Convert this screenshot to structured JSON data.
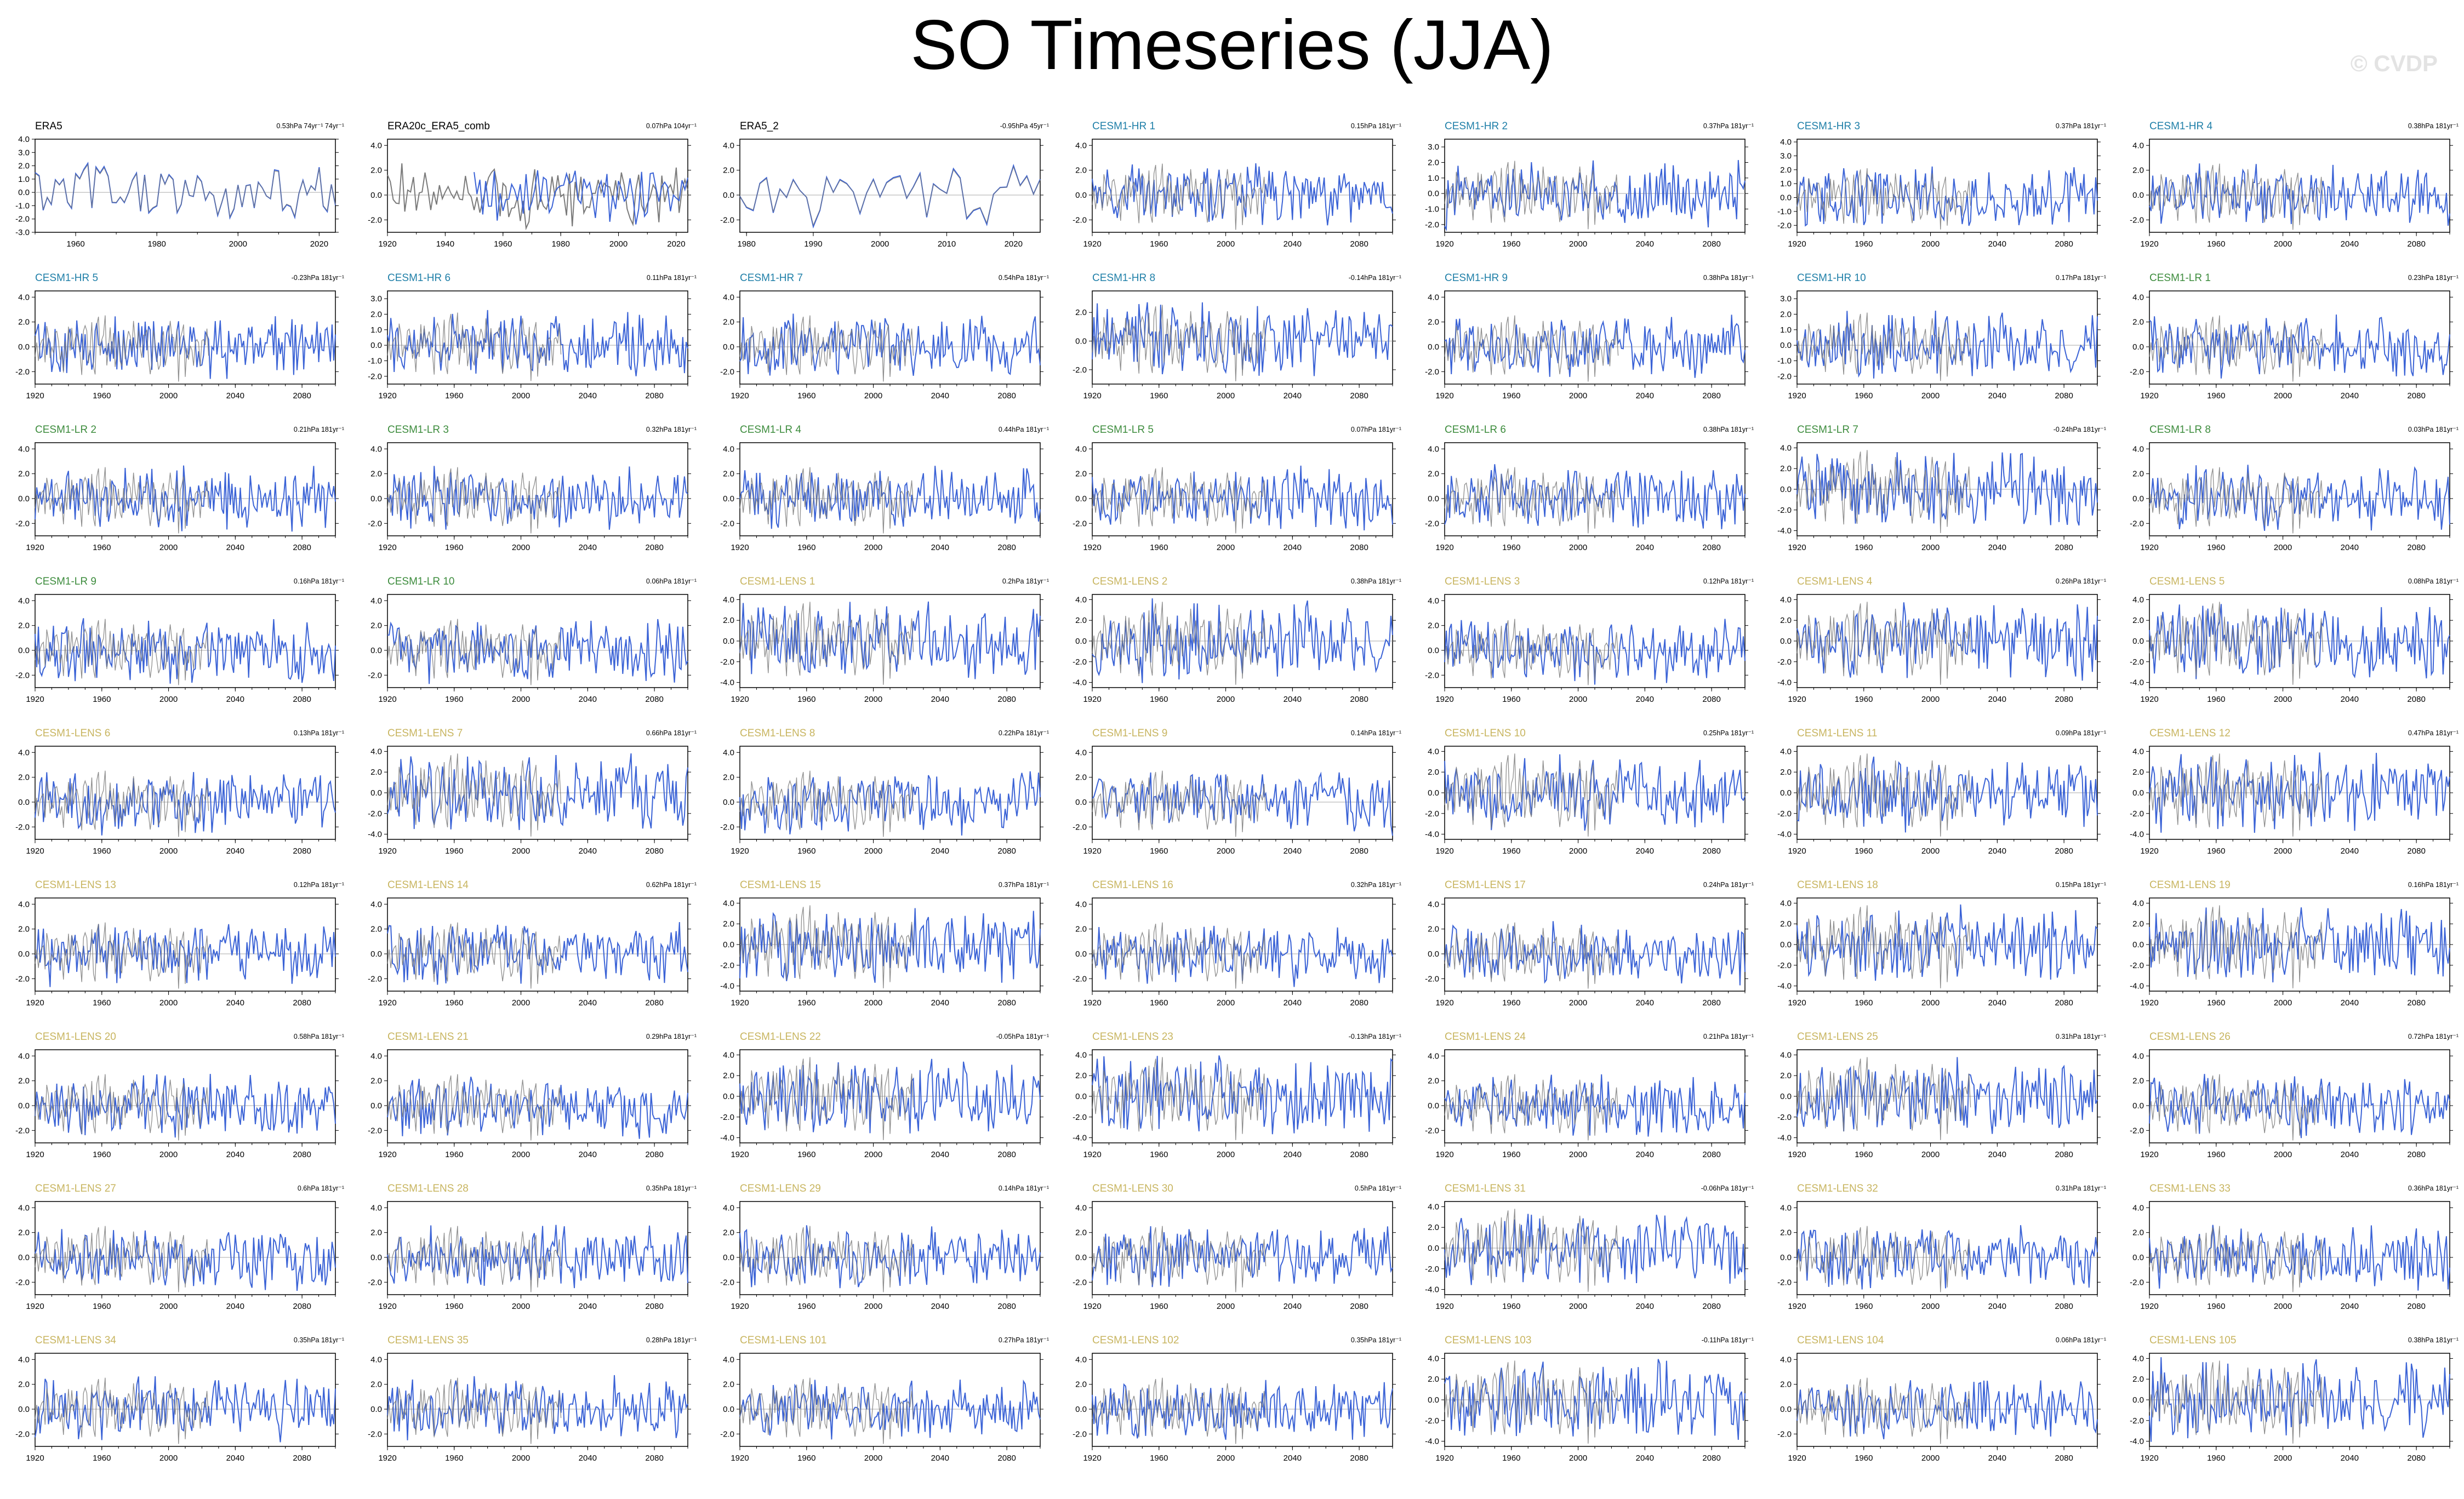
{
  "title": "SO Timeseries (JJA)",
  "watermark": "© CVDP",
  "colors": {
    "obs_black": "#000000",
    "hr_blue": "#1f7fa8",
    "lr_green": "#3d8c3d",
    "lens_gold": "#c8b560",
    "model_line": "#3b63d6",
    "obs_overlay": "#7a7a7a",
    "zero_line": "#aaaaaa"
  },
  "chart_data": [
    {
      "type": "line",
      "title": "ERA5",
      "trend": "0.53hPa 74yr⁻¹ 74yr⁻¹",
      "group": "obs",
      "xlim": [
        1950,
        2024
      ],
      "xticks": [
        "1960",
        "1980",
        "2000",
        "2020"
      ],
      "yticks": [
        "4.0",
        "3.0",
        "2.0",
        "1.0",
        "0.0",
        "-1.0",
        "-2.0",
        "-3.0"
      ],
      "ylim": [
        -3,
        4
      ]
    },
    {
      "type": "line",
      "title": "ERA20c_ERA5_comb",
      "trend": "0.07hPa 104yr⁻¹",
      "group": "obs",
      "xlim": [
        1920,
        2024
      ],
      "xticks": [
        "1920",
        "1940",
        "1960",
        "1980",
        "2000",
        "2020"
      ],
      "yticks": [
        "4.0",
        "2.0",
        "0.0",
        "-2.0"
      ],
      "ylim": [
        -3,
        4.5
      ]
    },
    {
      "type": "line",
      "title": "ERA5_2",
      "trend": "-0.95hPa 45yr⁻¹",
      "group": "obs",
      "xlim": [
        1979,
        2024
      ],
      "xticks": [
        "1980",
        "1990",
        "2000",
        "2010",
        "2020"
      ],
      "yticks": [
        "4.0",
        "2.0",
        "0.0",
        "-2.0"
      ],
      "ylim": [
        -3,
        4.5
      ]
    },
    {
      "type": "line",
      "title": "CESM1-HR 1",
      "trend": "0.15hPa 181yr⁻¹",
      "group": "hr",
      "yticks": [
        "4.0",
        "2.0",
        "0.0",
        "-2.0"
      ],
      "ylim": [
        -3,
        4.5
      ]
    },
    {
      "type": "line",
      "title": "CESM1-HR 2",
      "trend": "0.37hPa 181yr⁻¹",
      "group": "hr",
      "yticks": [
        "3.0",
        "2.0",
        "1.0",
        "0.0",
        "-1.0",
        "-2.0"
      ],
      "ylim": [
        -2.5,
        3.5
      ]
    },
    {
      "type": "line",
      "title": "CESM1-HR 3",
      "trend": "0.37hPa 181yr⁻¹",
      "group": "hr",
      "yticks": [
        "4.0",
        "3.0",
        "2.0",
        "1.0",
        "0.0",
        "-1.0",
        "-2.0"
      ],
      "ylim": [
        -2.5,
        4.2
      ]
    },
    {
      "type": "line",
      "title": "CESM1-HR 4",
      "trend": "0.38hPa 181yr⁻¹",
      "group": "hr",
      "yticks": [
        "4.0",
        "2.0",
        "0.0",
        "-2.0"
      ],
      "ylim": [
        -3,
        4.5
      ]
    },
    {
      "type": "line",
      "title": "CESM1-HR 5",
      "trend": "-0.23hPa 181yr⁻¹",
      "group": "hr",
      "yticks": [
        "4.0",
        "2.0",
        "0.0",
        "-2.0"
      ],
      "ylim": [
        -3,
        4.5
      ]
    },
    {
      "type": "line",
      "title": "CESM1-HR 6",
      "trend": "0.11hPa 181yr⁻¹",
      "group": "hr",
      "yticks": [
        "3.0",
        "2.0",
        "1.0",
        "0.0",
        "-1.0",
        "-2.0"
      ],
      "ylim": [
        -2.5,
        3.5
      ]
    },
    {
      "type": "line",
      "title": "CESM1-HR 7",
      "trend": "0.54hPa 181yr⁻¹",
      "group": "hr",
      "yticks": [
        "4.0",
        "2.0",
        "0.0",
        "-2.0"
      ],
      "ylim": [
        -3,
        4.5
      ]
    },
    {
      "type": "line",
      "title": "CESM1-HR 8",
      "trend": "-0.14hPa 181yr⁻¹",
      "group": "hr",
      "yticks": [
        "2.0",
        "0.0",
        "-2.0"
      ],
      "ylim": [
        -3,
        3.5
      ]
    },
    {
      "type": "line",
      "title": "CESM1-HR 9",
      "trend": "0.38hPa 181yr⁻¹",
      "group": "hr",
      "yticks": [
        "4.0",
        "2.0",
        "0.0",
        "-2.0"
      ],
      "ylim": [
        -3,
        4.5
      ]
    },
    {
      "type": "line",
      "title": "CESM1-HR 10",
      "trend": "0.17hPa 181yr⁻¹",
      "group": "hr",
      "yticks": [
        "3.0",
        "2.0",
        "1.0",
        "0.0",
        "-1.0",
        "-2.0"
      ],
      "ylim": [
        -2.5,
        3.5
      ]
    },
    {
      "type": "line",
      "title": "CESM1-LR 1",
      "trend": "0.23hPa 181yr⁻¹",
      "group": "lr",
      "yticks": [
        "4.0",
        "2.0",
        "0.0",
        "-2.0"
      ],
      "ylim": [
        -3,
        4.5
      ]
    },
    {
      "type": "line",
      "title": "CESM1-LR 2",
      "trend": "0.21hPa 181yr⁻¹",
      "group": "lr",
      "yticks": [
        "4.0",
        "2.0",
        "0.0",
        "-2.0"
      ],
      "ylim": [
        -3,
        4.5
      ]
    },
    {
      "type": "line",
      "title": "CESM1-LR 3",
      "trend": "0.32hPa 181yr⁻¹",
      "group": "lr",
      "yticks": [
        "4.0",
        "2.0",
        "0.0",
        "-2.0"
      ],
      "ylim": [
        -3,
        4.5
      ]
    },
    {
      "type": "line",
      "title": "CESM1-LR 4",
      "trend": "0.44hPa 181yr⁻¹",
      "group": "lr",
      "yticks": [
        "4.0",
        "2.0",
        "0.0",
        "-2.0"
      ],
      "ylim": [
        -3,
        4.5
      ]
    },
    {
      "type": "line",
      "title": "CESM1-LR 5",
      "trend": "0.07hPa 181yr⁻¹",
      "group": "lr",
      "yticks": [
        "4.0",
        "2.0",
        "0.0",
        "-2.0"
      ],
      "ylim": [
        -3,
        4.5
      ]
    },
    {
      "type": "line",
      "title": "CESM1-LR 6",
      "trend": "0.38hPa 181yr⁻¹",
      "group": "lr",
      "yticks": [
        "4.0",
        "2.0",
        "0.0",
        "-2.0"
      ],
      "ylim": [
        -3,
        4.5
      ]
    },
    {
      "type": "line",
      "title": "CESM1-LR 7",
      "trend": "-0.24hPa 181yr⁻¹",
      "group": "lr",
      "yticks": [
        "4.0",
        "2.0",
        "0.0",
        "-2.0",
        "-4.0"
      ],
      "ylim": [
        -4.5,
        4.5
      ]
    },
    {
      "type": "line",
      "title": "CESM1-LR 8",
      "trend": "0.03hPa 181yr⁻¹",
      "group": "lr",
      "yticks": [
        "4.0",
        "2.0",
        "0.0",
        "-2.0"
      ],
      "ylim": [
        -3,
        4.5
      ]
    },
    {
      "type": "line",
      "title": "CESM1-LR 9",
      "trend": "0.16hPa 181yr⁻¹",
      "group": "lr",
      "yticks": [
        "4.0",
        "2.0",
        "0.0",
        "-2.0"
      ],
      "ylim": [
        -3,
        4.5
      ]
    },
    {
      "type": "line",
      "title": "CESM1-LR 10",
      "trend": "0.06hPa 181yr⁻¹",
      "group": "lr",
      "yticks": [
        "4.0",
        "2.0",
        "0.0",
        "-2.0"
      ],
      "ylim": [
        -3,
        4.5
      ]
    },
    {
      "type": "line",
      "title": "CESM1-LENS 1",
      "trend": "0.2hPa 181yr⁻¹",
      "group": "lens",
      "yticks": [
        "4.0",
        "2.0",
        "0.0",
        "-2.0",
        "-4.0"
      ],
      "ylim": [
        -4.5,
        4.5
      ]
    },
    {
      "type": "line",
      "title": "CESM1-LENS 2",
      "trend": "0.38hPa 181yr⁻¹",
      "group": "lens",
      "yticks": [
        "4.0",
        "2.0",
        "0.0",
        "-2.0",
        "-4.0"
      ],
      "ylim": [
        -4.5,
        4.5
      ]
    },
    {
      "type": "line",
      "title": "CESM1-LENS 3",
      "trend": "0.12hPa 181yr⁻¹",
      "group": "lens",
      "yticks": [
        "4.0",
        "2.0",
        "0.0",
        "-2.0"
      ],
      "ylim": [
        -3,
        4.5
      ]
    },
    {
      "type": "line",
      "title": "CESM1-LENS 4",
      "trend": "0.26hPa 181yr⁻¹",
      "group": "lens",
      "yticks": [
        "4.0",
        "2.0",
        "0.0",
        "-2.0",
        "-4.0"
      ],
      "ylim": [
        -4.5,
        4.5
      ]
    },
    {
      "type": "line",
      "title": "CESM1-LENS 5",
      "trend": "0.08hPa 181yr⁻¹",
      "group": "lens",
      "yticks": [
        "4.0",
        "2.0",
        "0.0",
        "-2.0",
        "-4.0"
      ],
      "ylim": [
        -4.5,
        4.5
      ]
    },
    {
      "type": "line",
      "title": "CESM1-LENS 6",
      "trend": "0.13hPa 181yr⁻¹",
      "group": "lens",
      "yticks": [
        "4.0",
        "2.0",
        "0.0",
        "-2.0"
      ],
      "ylim": [
        -3,
        4.5
      ]
    },
    {
      "type": "line",
      "title": "CESM1-LENS 7",
      "trend": "0.66hPa 181yr⁻¹",
      "group": "lens",
      "yticks": [
        "4.0",
        "2.0",
        "0.0",
        "-2.0",
        "-4.0"
      ],
      "ylim": [
        -4.5,
        4.5
      ]
    },
    {
      "type": "line",
      "title": "CESM1-LENS 8",
      "trend": "0.22hPa 181yr⁻¹",
      "group": "lens",
      "yticks": [
        "4.0",
        "2.0",
        "0.0",
        "-2.0"
      ],
      "ylim": [
        -3,
        4.5
      ]
    },
    {
      "type": "line",
      "title": "CESM1-LENS 9",
      "trend": "0.14hPa 181yr⁻¹",
      "group": "lens",
      "yticks": [
        "4.0",
        "2.0",
        "0.0",
        "-2.0"
      ],
      "ylim": [
        -3,
        4.5
      ]
    },
    {
      "type": "line",
      "title": "CESM1-LENS 10",
      "trend": "0.25hPa 181yr⁻¹",
      "group": "lens",
      "yticks": [
        "4.0",
        "2.0",
        "0.0",
        "-2.0",
        "-4.0"
      ],
      "ylim": [
        -4.5,
        4.5
      ]
    },
    {
      "type": "line",
      "title": "CESM1-LENS 11",
      "trend": "0.09hPa 181yr⁻¹",
      "group": "lens",
      "yticks": [
        "4.0",
        "2.0",
        "0.0",
        "-2.0",
        "-4.0"
      ],
      "ylim": [
        -4.5,
        4.5
      ]
    },
    {
      "type": "line",
      "title": "CESM1-LENS 12",
      "trend": "0.47hPa 181yr⁻¹",
      "group": "lens",
      "yticks": [
        "4.0",
        "2.0",
        "0.0",
        "-2.0",
        "-4.0"
      ],
      "ylim": [
        -4.5,
        4.5
      ]
    },
    {
      "type": "line",
      "title": "CESM1-LENS 13",
      "trend": "0.12hPa 181yr⁻¹",
      "group": "lens",
      "yticks": [
        "4.0",
        "2.0",
        "0.0",
        "-2.0"
      ],
      "ylim": [
        -3,
        4.5
      ]
    },
    {
      "type": "line",
      "title": "CESM1-LENS 14",
      "trend": "0.62hPa 181yr⁻¹",
      "group": "lens",
      "yticks": [
        "4.0",
        "2.0",
        "0.0",
        "-2.0"
      ],
      "ylim": [
        -3,
        4.5
      ]
    },
    {
      "type": "line",
      "title": "CESM1-LENS 15",
      "trend": "0.37hPa 181yr⁻¹",
      "group": "lens",
      "yticks": [
        "4.0",
        "2.0",
        "0.0",
        "-2.0",
        "-4.0"
      ],
      "ylim": [
        -4.5,
        4.5
      ]
    },
    {
      "type": "line",
      "title": "CESM1-LENS 16",
      "trend": "0.32hPa 181yr⁻¹",
      "group": "lens",
      "yticks": [
        "4.0",
        "2.0",
        "0.0",
        "-2.0"
      ],
      "ylim": [
        -3,
        4.5
      ]
    },
    {
      "type": "line",
      "title": "CESM1-LENS 17",
      "trend": "0.24hPa 181yr⁻¹",
      "group": "lens",
      "yticks": [
        "4.0",
        "2.0",
        "0.0",
        "-2.0"
      ],
      "ylim": [
        -3,
        4.5
      ]
    },
    {
      "type": "line",
      "title": "CESM1-LENS 18",
      "trend": "0.15hPa 181yr⁻¹",
      "group": "lens",
      "yticks": [
        "4.0",
        "2.0",
        "0.0",
        "-2.0",
        "-4.0"
      ],
      "ylim": [
        -4.5,
        4.5
      ]
    },
    {
      "type": "line",
      "title": "CESM1-LENS 19",
      "trend": "0.16hPa 181yr⁻¹",
      "group": "lens",
      "yticks": [
        "4.0",
        "2.0",
        "0.0",
        "-2.0",
        "-4.0"
      ],
      "ylim": [
        -4.5,
        4.5
      ]
    },
    {
      "type": "line",
      "title": "CESM1-LENS 20",
      "trend": "0.58hPa 181yr⁻¹",
      "group": "lens",
      "yticks": [
        "4.0",
        "2.0",
        "0.0",
        "-2.0"
      ],
      "ylim": [
        -3,
        4.5
      ]
    },
    {
      "type": "line",
      "title": "CESM1-LENS 21",
      "trend": "0.29hPa 181yr⁻¹",
      "group": "lens",
      "yticks": [
        "4.0",
        "2.0",
        "0.0",
        "-2.0"
      ],
      "ylim": [
        -3,
        4.5
      ]
    },
    {
      "type": "line",
      "title": "CESM1-LENS 22",
      "trend": "-0.05hPa 181yr⁻¹",
      "group": "lens",
      "yticks": [
        "4.0",
        "2.0",
        "0.0",
        "-2.0",
        "-4.0"
      ],
      "ylim": [
        -4.5,
        4.5
      ]
    },
    {
      "type": "line",
      "title": "CESM1-LENS 23",
      "trend": "-0.13hPa 181yr⁻¹",
      "group": "lens",
      "yticks": [
        "4.0",
        "2.0",
        "0.0",
        "-2.0",
        "-4.0"
      ],
      "ylim": [
        -4.5,
        4.5
      ]
    },
    {
      "type": "line",
      "title": "CESM1-LENS 24",
      "trend": "0.21hPa 181yr⁻¹",
      "group": "lens",
      "yticks": [
        "4.0",
        "2.0",
        "0.0",
        "-2.0"
      ],
      "ylim": [
        -3,
        4.5
      ]
    },
    {
      "type": "line",
      "title": "CESM1-LENS 25",
      "trend": "0.31hPa 181yr⁻¹",
      "group": "lens",
      "yticks": [
        "4.0",
        "2.0",
        "0.0",
        "-2.0",
        "-4.0"
      ],
      "ylim": [
        -4.5,
        4.5
      ]
    },
    {
      "type": "line",
      "title": "CESM1-LENS 26",
      "trend": "0.72hPa 181yr⁻¹",
      "group": "lens",
      "yticks": [
        "4.0",
        "2.0",
        "0.0",
        "-2.0"
      ],
      "ylim": [
        -3,
        4.5
      ]
    },
    {
      "type": "line",
      "title": "CESM1-LENS 27",
      "trend": "0.6hPa 181yr⁻¹",
      "group": "lens",
      "yticks": [
        "4.0",
        "2.0",
        "0.0",
        "-2.0"
      ],
      "ylim": [
        -3,
        4.5
      ]
    },
    {
      "type": "line",
      "title": "CESM1-LENS 28",
      "trend": "0.35hPa 181yr⁻¹",
      "group": "lens",
      "yticks": [
        "4.0",
        "2.0",
        "0.0",
        "-2.0"
      ],
      "ylim": [
        -3,
        4.5
      ]
    },
    {
      "type": "line",
      "title": "CESM1-LENS 29",
      "trend": "0.14hPa 181yr⁻¹",
      "group": "lens",
      "yticks": [
        "4.0",
        "2.0",
        "0.0",
        "-2.0"
      ],
      "ylim": [
        -3,
        4.5
      ]
    },
    {
      "type": "line",
      "title": "CESM1-LENS 30",
      "trend": "0.5hPa 181yr⁻¹",
      "group": "lens",
      "yticks": [
        "4.0",
        "2.0",
        "0.0",
        "-2.0"
      ],
      "ylim": [
        -3,
        4.5
      ]
    },
    {
      "type": "line",
      "title": "CESM1-LENS 31",
      "trend": "-0.06hPa 181yr⁻¹",
      "group": "lens",
      "yticks": [
        "4.0",
        "2.0",
        "0.0",
        "-2.0",
        "-4.0"
      ],
      "ylim": [
        -4.5,
        4.5
      ]
    },
    {
      "type": "line",
      "title": "CESM1-LENS 32",
      "trend": "0.31hPa 181yr⁻¹",
      "group": "lens",
      "yticks": [
        "4.0",
        "2.0",
        "0.0",
        "-2.0"
      ],
      "ylim": [
        -3,
        4.5
      ]
    },
    {
      "type": "line",
      "title": "CESM1-LENS 33",
      "trend": "0.36hPa 181yr⁻¹",
      "group": "lens",
      "yticks": [
        "4.0",
        "2.0",
        "0.0",
        "-2.0"
      ],
      "ylim": [
        -3,
        4.5
      ]
    },
    {
      "type": "line",
      "title": "CESM1-LENS 34",
      "trend": "0.35hPa 181yr⁻¹",
      "group": "lens",
      "yticks": [
        "4.0",
        "2.0",
        "0.0",
        "-2.0"
      ],
      "ylim": [
        -3,
        4.5
      ]
    },
    {
      "type": "line",
      "title": "CESM1-LENS 35",
      "trend": "0.28hPa 181yr⁻¹",
      "group": "lens",
      "yticks": [
        "4.0",
        "2.0",
        "0.0",
        "-2.0"
      ],
      "ylim": [
        -3,
        4.5
      ]
    },
    {
      "type": "line",
      "title": "CESM1-LENS 101",
      "trend": "0.27hPa 181yr⁻¹",
      "group": "lens",
      "yticks": [
        "4.0",
        "2.0",
        "0.0",
        "-2.0"
      ],
      "ylim": [
        -3,
        4.5
      ]
    },
    {
      "type": "line",
      "title": "CESM1-LENS 102",
      "trend": "0.35hPa 181yr⁻¹",
      "group": "lens",
      "yticks": [
        "4.0",
        "2.0",
        "0.0",
        "-2.0"
      ],
      "ylim": [
        -3,
        4.5
      ]
    },
    {
      "type": "line",
      "title": "CESM1-LENS 103",
      "trend": "-0.11hPa 181yr⁻¹",
      "group": "lens",
      "yticks": [
        "4.0",
        "2.0",
        "0.0",
        "-2.0",
        "-4.0"
      ],
      "ylim": [
        -4.5,
        4.5
      ]
    },
    {
      "type": "line",
      "title": "CESM1-LENS 104",
      "trend": "0.06hPa 181yr⁻¹",
      "group": "lens",
      "yticks": [
        "4.0",
        "2.0",
        "0.0",
        "-2.0"
      ],
      "ylim": [
        -3,
        4.5
      ]
    },
    {
      "type": "line",
      "title": "CESM1-LENS 105",
      "trend": "0.38hPa 181yr⁻¹",
      "group": "lens",
      "yticks": [
        "4.0",
        "2.0",
        "0.0",
        "-2.0",
        "-4.0"
      ],
      "ylim": [
        -4.5,
        4.5
      ]
    }
  ],
  "model_xaxis": {
    "xlim": [
      1920,
      2100
    ],
    "xticks": [
      "1920",
      "1960",
      "2000",
      "2040",
      "2080"
    ]
  }
}
